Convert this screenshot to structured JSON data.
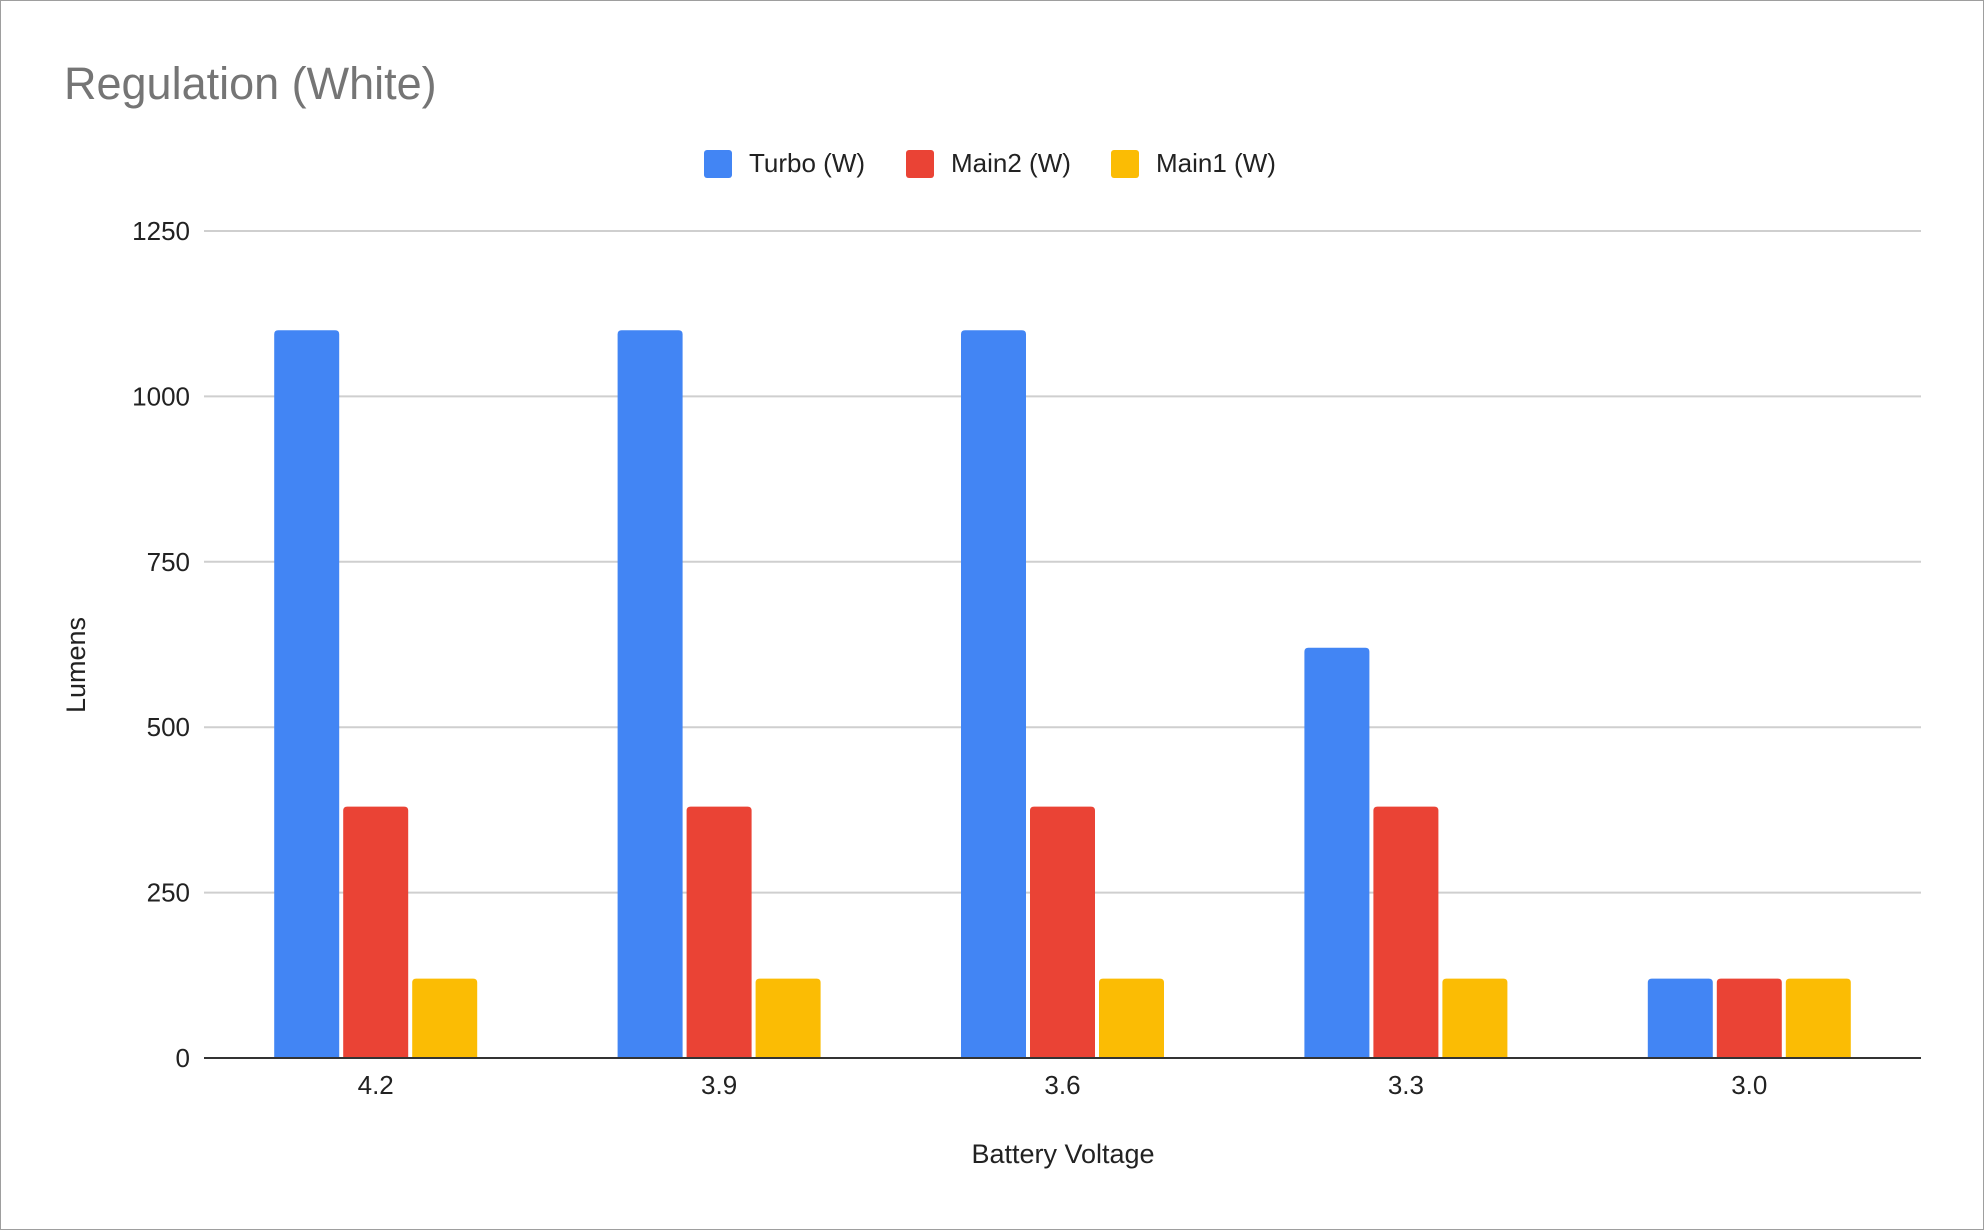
{
  "chart_data": {
    "type": "bar",
    "title": "Regulation (White)",
    "xlabel": "Battery Voltage",
    "ylabel": "Lumens",
    "categories": [
      "4.2",
      "3.9",
      "3.6",
      "3.3",
      "3.0"
    ],
    "series": [
      {
        "name": "Turbo (W)",
        "color": "#4285f4",
        "values": [
          1100,
          1100,
          1100,
          620,
          120
        ]
      },
      {
        "name": "Main2 (W)",
        "color": "#ea4335",
        "values": [
          380,
          380,
          380,
          380,
          120
        ]
      },
      {
        "name": "Main1 (W)",
        "color": "#fbbc04",
        "values": [
          120,
          120,
          120,
          120,
          120
        ]
      }
    ],
    "ylim": [
      0,
      1250
    ],
    "yticks": [
      0,
      250,
      500,
      750,
      1000,
      1250
    ],
    "ytick_labels": [
      "0",
      "250",
      "500",
      "750",
      "1000",
      "1250"
    ],
    "grid": true,
    "legend_position": "top-center"
  }
}
